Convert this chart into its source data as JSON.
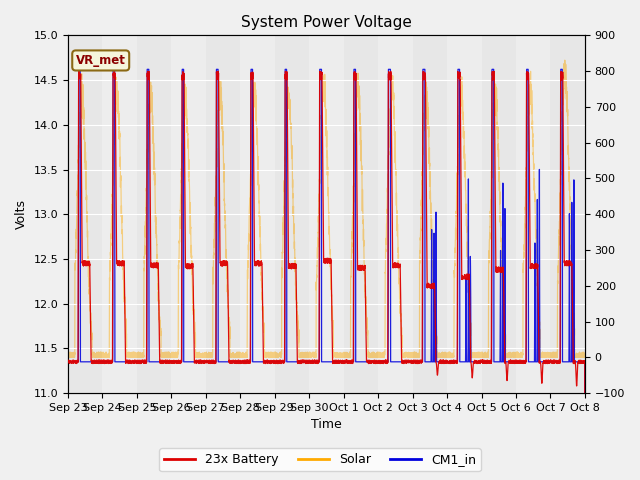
{
  "title": "System Power Voltage",
  "xlabel": "Time",
  "ylabel_left": "Volts",
  "ylim_left": [
    11.0,
    15.0
  ],
  "ylim_right": [
    -100,
    900
  ],
  "yticks_left": [
    11.0,
    11.5,
    12.0,
    12.5,
    13.0,
    13.5,
    14.0,
    14.5,
    15.0
  ],
  "yticks_right": [
    -100,
    0,
    100,
    200,
    300,
    400,
    500,
    600,
    700,
    800,
    900
  ],
  "x_tick_labels": [
    "Sep 23",
    "Sep 24",
    "Sep 25",
    "Sep 26",
    "Sep 27",
    "Sep 28",
    "Sep 29",
    "Sep 30",
    "Oct 1",
    "Oct 2",
    "Oct 3",
    "Oct 4",
    "Oct 5",
    "Oct 6",
    "Oct 7",
    "Oct 8"
  ],
  "vr_met_label": "VR_met",
  "legend_labels": [
    "23x Battery",
    "Solar",
    "CM1_in"
  ],
  "line_colors": [
    "#dd0000",
    "#ffaa00",
    "#0000dd"
  ],
  "fig_facecolor": "#f0f0f0",
  "plot_facecolor": "#e8e8e8",
  "title_fontsize": 11,
  "label_fontsize": 9,
  "tick_fontsize": 8,
  "n_days": 15,
  "pts_per_day": 300
}
